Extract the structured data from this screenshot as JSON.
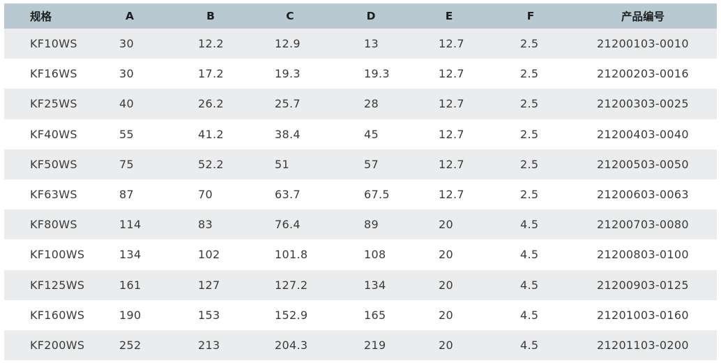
{
  "table": {
    "headers": [
      "规格",
      "A",
      "B",
      "C",
      "D",
      "E",
      "F",
      "产品编号"
    ],
    "rows": [
      [
        "KF10WS",
        "30",
        "12.2",
        "12.9",
        "13",
        "12.7",
        "2.5",
        "21200103-0010"
      ],
      [
        "KF16WS",
        "30",
        "17.2",
        "19.3",
        "19.3",
        "12.7",
        "2.5",
        "21200203-0016"
      ],
      [
        "KF25WS",
        "40",
        "26.2",
        "25.7",
        "28",
        "12.7",
        "2.5",
        "21200303-0025"
      ],
      [
        "KF40WS",
        "55",
        "41.2",
        "38.4",
        "45",
        "12.7",
        "2.5",
        "21200403-0040"
      ],
      [
        "KF50WS",
        "75",
        "52.2",
        "51",
        "57",
        "12.7",
        "2.5",
        "21200503-0050"
      ],
      [
        "KF63WS",
        "87",
        "70",
        "63.7",
        "67.5",
        "12.7",
        "2.5",
        "21200603-0063"
      ],
      [
        "KF80WS",
        "114",
        "83",
        "76.4",
        "89",
        "20",
        "4.5",
        "21200703-0080"
      ],
      [
        "KF100WS",
        "134",
        "102",
        "101.8",
        "108",
        "20",
        "4.5",
        "21200803-0100"
      ],
      [
        "KF125WS",
        "161",
        "127",
        "127.2",
        "134",
        "20",
        "4.5",
        "21200903-0125"
      ],
      [
        "KF160WS",
        "190",
        "153",
        "152.9",
        "165",
        "20",
        "4.5",
        "21201003-0160"
      ],
      [
        "KF200WS",
        "252",
        "213",
        "204.3",
        "219",
        "20",
        "4.5",
        "21201103-0200"
      ]
    ]
  },
  "colors": {
    "header_bg": "#b8c9d1",
    "row_shaded": "#ebeced",
    "row_plain": "#ffffff"
  }
}
